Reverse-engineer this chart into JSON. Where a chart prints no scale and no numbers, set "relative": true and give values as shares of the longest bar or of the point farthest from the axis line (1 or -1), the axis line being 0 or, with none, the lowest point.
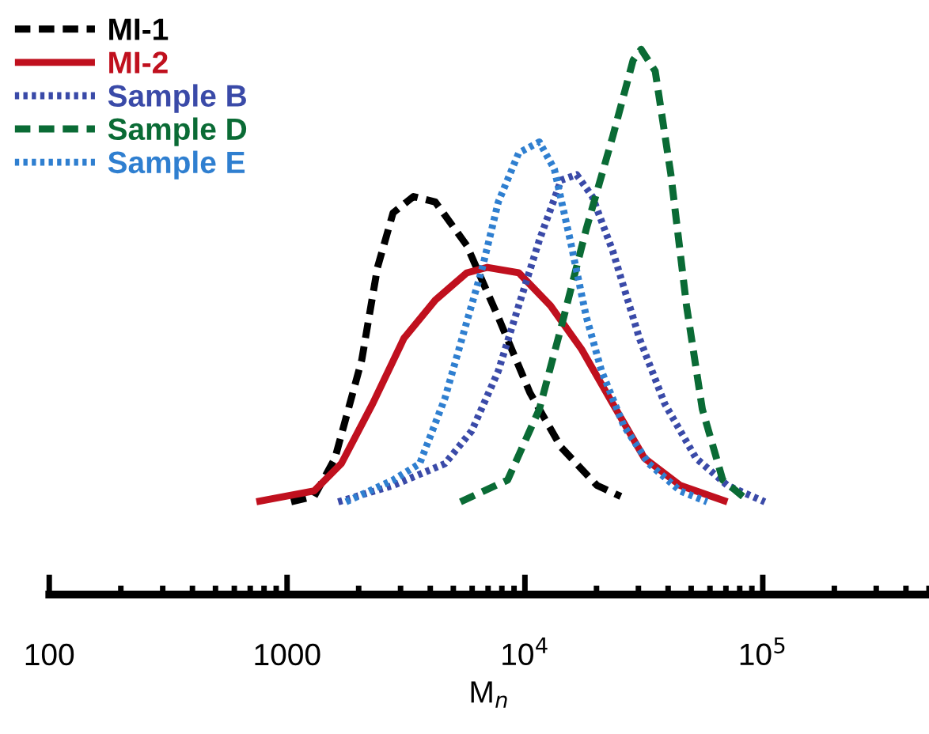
{
  "chart_data": {
    "type": "line",
    "relative": true,
    "xlabel": "M$_{n}$",
    "log": "x",
    "xlim": [
      100,
      500000
    ],
    "xticks": [
      100,
      1000,
      {
        "value": 10000,
        "label": "10$^{4}$"
      },
      {
        "value": 100000,
        "label": "10$^{5}$"
      }
    ],
    "tick_labels": "x",
    "grid": false,
    "legend": "top left",
    "marker": "none",
    "series": [
      {
        "name": "MI-1",
        "color": "#000000",
        "line_style": "dashed",
        "x": [
          1040,
          1300,
          1590,
          2060,
          2400,
          2790,
          3400,
          4200,
          5700,
          7700,
          10500,
          14200,
          20100,
          25300
        ],
        "values": [
          0.17,
          0.18,
          0.25,
          0.43,
          0.6,
          0.7,
          0.73,
          0.72,
          0.64,
          0.51,
          0.37,
          0.27,
          0.2,
          0.18
        ]
      },
      {
        "name": "MI-2",
        "color": "#c0101e",
        "line_style": "solid",
        "x": [
          743,
          1300,
          1690,
          2290,
          3100,
          4200,
          5700,
          6950,
          9420,
          12800,
          17300,
          23400,
          31800,
          45000,
          71000
        ],
        "values": [
          0.17,
          0.19,
          0.24,
          0.35,
          0.47,
          0.54,
          0.59,
          0.6,
          0.59,
          0.53,
          0.45,
          0.35,
          0.25,
          0.2,
          0.17
        ]
      },
      {
        "name": "Sample B",
        "color": "#3a4aa8",
        "line_style": "dotted",
        "x": [
          1640,
          2790,
          4610,
          5970,
          7730,
          9420,
          11500,
          14200,
          16500,
          19200,
          23400,
          30300,
          38700,
          52400,
          71000,
          102000
        ],
        "values": [
          0.17,
          0.2,
          0.24,
          0.3,
          0.41,
          0.53,
          0.65,
          0.76,
          0.77,
          0.73,
          0.63,
          0.47,
          0.35,
          0.25,
          0.2,
          0.17
        ]
      },
      {
        "name": "Sample D",
        "color": "#0a6b35",
        "line_style": "dashed",
        "x": [
          5360,
          8460,
          11500,
          14200,
          18100,
          23400,
          28500,
          30800,
          35300,
          41100,
          47800,
          55700,
          67900,
          87900
        ],
        "values": [
          0.17,
          0.21,
          0.34,
          0.49,
          0.67,
          0.84,
          0.98,
          1.0,
          0.96,
          0.77,
          0.53,
          0.34,
          0.21,
          0.17
        ]
      },
      {
        "name": "Sample E",
        "color": "#2f7fd0",
        "line_style": "dotted",
        "x": [
          1770,
          2790,
          3610,
          4610,
          5360,
          6630,
          7730,
          9420,
          11500,
          13300,
          15500,
          18100,
          21000,
          26000,
          33200,
          45000,
          58300
        ],
        "values": [
          0.17,
          0.21,
          0.24,
          0.36,
          0.46,
          0.6,
          0.72,
          0.81,
          0.83,
          0.78,
          0.65,
          0.51,
          0.41,
          0.31,
          0.24,
          0.19,
          0.17
        ]
      }
    ]
  }
}
